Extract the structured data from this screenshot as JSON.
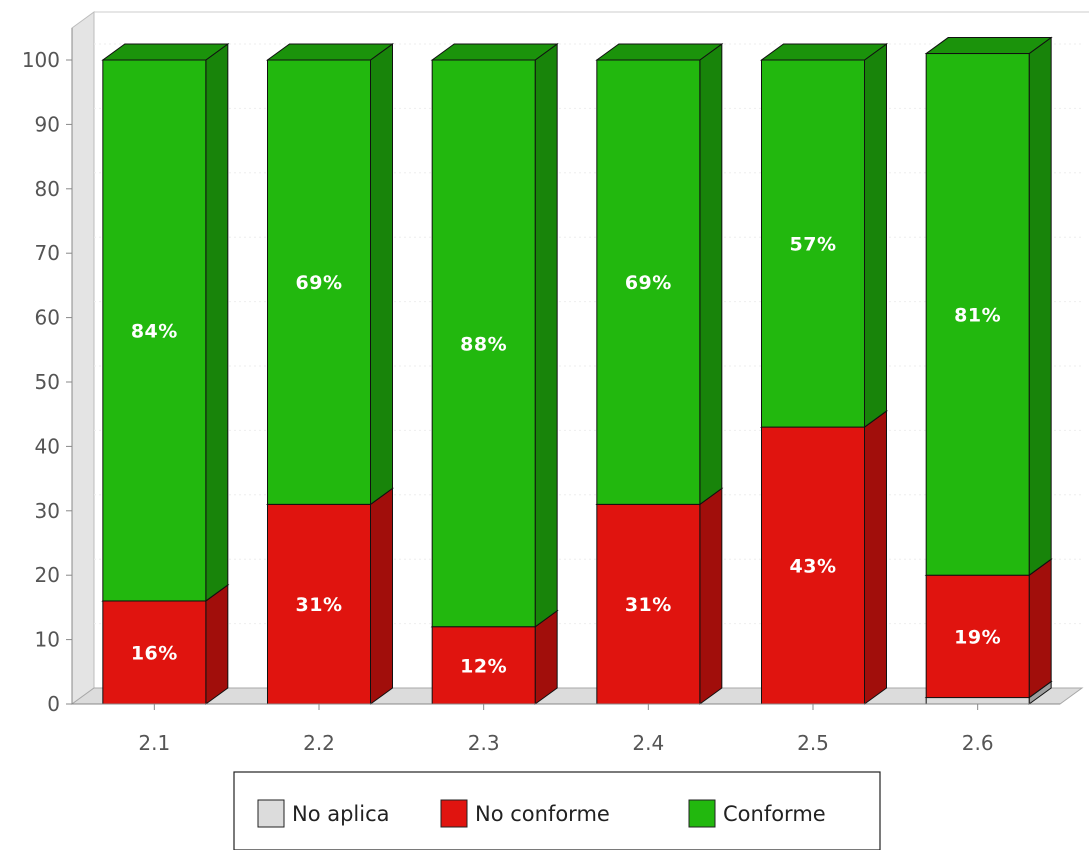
{
  "chart_data": {
    "type": "bar",
    "stacked": true,
    "three_d": true,
    "categories": [
      "2.1",
      "2.2",
      "2.3",
      "2.4",
      "2.5",
      "2.6"
    ],
    "series": [
      {
        "name": "No aplica",
        "color": "#dcdcdc",
        "values": [
          0,
          0,
          0,
          0,
          0,
          1
        ],
        "labels": [
          "",
          "",
          "",
          "",
          "",
          ""
        ]
      },
      {
        "name": "No conforme",
        "color": "#e0140f",
        "values": [
          16,
          31,
          12,
          31,
          43,
          19
        ],
        "labels": [
          "16%",
          "31%",
          "12%",
          "31%",
          "43%",
          "19%"
        ]
      },
      {
        "name": "Conforme",
        "color": "#22b80e",
        "values": [
          84,
          69,
          88,
          69,
          57,
          81
        ],
        "labels": [
          "84%",
          "69%",
          "88%",
          "69%",
          "57%",
          "81%"
        ]
      }
    ],
    "ylim": [
      0,
      100
    ],
    "yticks": [
      "0",
      "10",
      "20",
      "30",
      "40",
      "50",
      "60",
      "70",
      "80",
      "90",
      "100"
    ],
    "grid": true,
    "legend_position": "bottom"
  }
}
